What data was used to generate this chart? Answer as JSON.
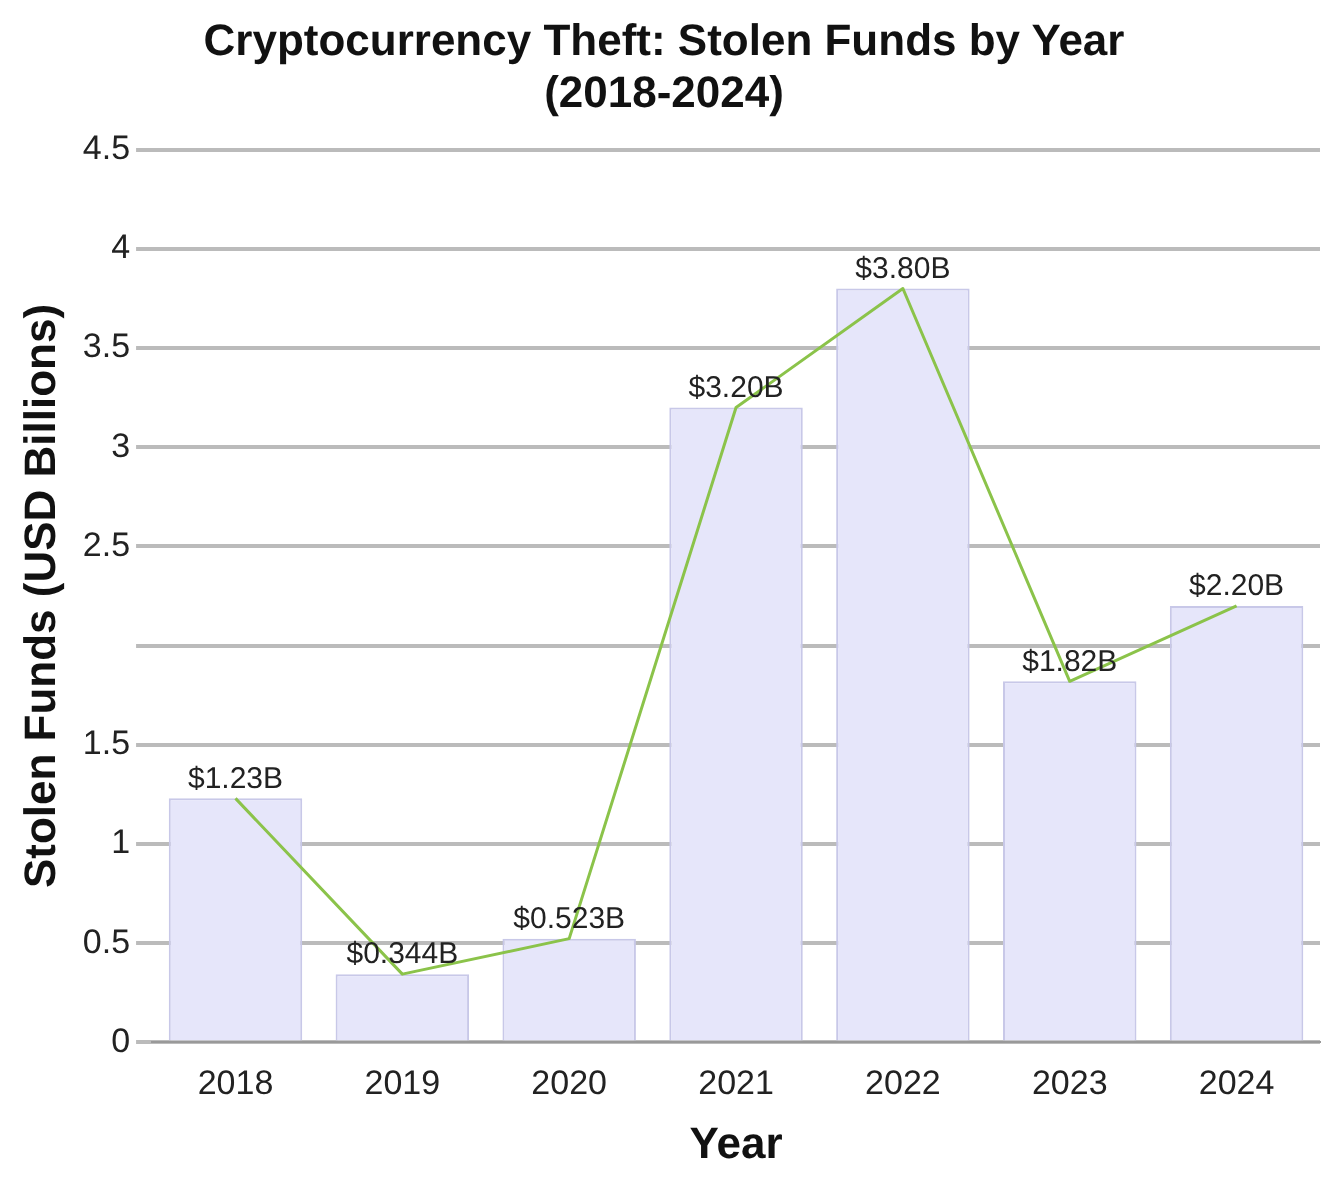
{
  "chart_data": {
    "type": "bar",
    "title": "Cryptocurrency Theft: Stolen Funds by Year (2018-2024)",
    "xlabel": "Year",
    "ylabel": "Stolen Funds (USD Billions)",
    "categories": [
      "2018",
      "2019",
      "2020",
      "2021",
      "2022",
      "2023",
      "2024"
    ],
    "series": [
      {
        "color": "#e6e6fa",
        "values": [
          1.23,
          0.344,
          0.523,
          3.2,
          3.8,
          1.82,
          2.2
        ],
        "value_labels": [
          "$1.23B",
          "$0.344B",
          "$0.523B",
          "$3.20B",
          "$3.80B",
          "$1.82B",
          "$2.20B"
        ]
      },
      {
        "type": "line",
        "color": "#8bc34a",
        "values": [
          1.23,
          0.344,
          0.523,
          3.2,
          3.8,
          1.82,
          2.2
        ]
      }
    ],
    "ylim": [
      0,
      4.5
    ],
    "yticks": [
      0,
      0.5,
      1,
      1.5,
      {
        "value": 2,
        "label": null
      },
      2.5,
      3,
      3.5,
      4,
      4.5
    ],
    "grid": "y",
    "legend": false,
    "marker": "none"
  }
}
